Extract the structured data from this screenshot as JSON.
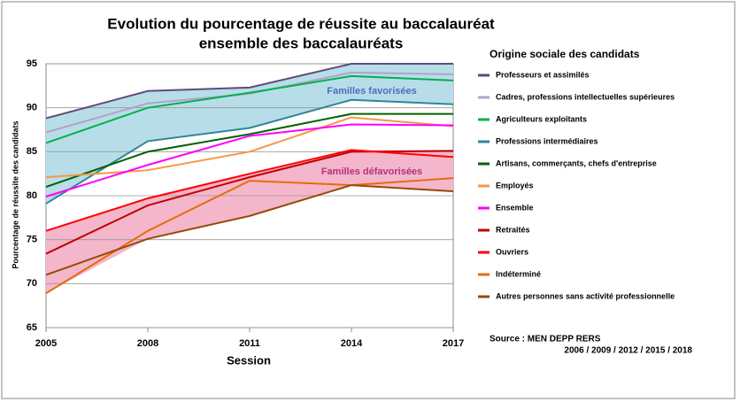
{
  "chart_data": {
    "type": "line",
    "title": "Evolution du pourcentage de réussite au baccalauréat",
    "subtitle": "ensemble des baccalauréats",
    "y_label": "Pourcentage de réussite des candidats",
    "x_label": "Session",
    "legend_title": "Origine sociale des candidats",
    "annotations": [
      {
        "text": "Familles favorisées",
        "color": "#4f6bbf",
        "fill": "#b7dee8"
      },
      {
        "text": "Familles défavorisées",
        "color": "#b2307f",
        "fill": "#f4b6cb"
      }
    ],
    "source": "Source : MEN DEPP RERS",
    "source_years": "2006 / 2009 / 2012 / 2015 / 2018",
    "x": [
      2005,
      2008,
      2011,
      2014,
      2017
    ],
    "xlim": [
      2005,
      2017
    ],
    "xticks": [
      2005,
      2008,
      2011,
      2014,
      2017
    ],
    "ylim": [
      65,
      95
    ],
    "yticks": [
      65,
      70,
      75,
      80,
      85,
      90,
      95
    ],
    "grid": true,
    "series": [
      {
        "name": "Professeurs et assimilés",
        "color": "#604a7b",
        "values": [
          88.8,
          91.9,
          92.3,
          95.0,
          95.0
        ]
      },
      {
        "name": "Cadres, professions intellectuelles supérieures",
        "color": "#b3a2c7",
        "values": [
          87.2,
          90.5,
          91.6,
          94.0,
          93.8
        ]
      },
      {
        "name": "Agriculteurs exploitants",
        "color": "#00b050",
        "values": [
          86.0,
          90.0,
          91.7,
          93.6,
          93.1
        ]
      },
      {
        "name": "Professions intermédiaires",
        "color": "#31849b",
        "values": [
          79.1,
          86.2,
          87.7,
          90.9,
          90.4
        ]
      },
      {
        "name": "Artisans, commerçants, chefs d'entreprise",
        "color": "#006100",
        "values": [
          81.0,
          85.0,
          87.0,
          89.3,
          89.3
        ]
      },
      {
        "name": "Employés",
        "color": "#f79646",
        "values": [
          82.1,
          82.9,
          85.0,
          88.9,
          87.9
        ]
      },
      {
        "name": "Ensemble",
        "color": "#ff00ff",
        "values": [
          79.9,
          83.5,
          86.8,
          88.1,
          88.0
        ]
      },
      {
        "name": "Retraités",
        "color": "#c00000",
        "values": [
          73.4,
          78.9,
          82.1,
          85.0,
          85.1
        ]
      },
      {
        "name": "Ouvriers",
        "color": "#ff0000",
        "values": [
          76.0,
          79.7,
          82.5,
          85.2,
          84.4
        ]
      },
      {
        "name": "Indéterminé",
        "color": "#e46c0a",
        "values": [
          68.9,
          76.0,
          81.7,
          81.2,
          82.0
        ]
      },
      {
        "name": "Autres personnes sans activité professionnelle",
        "color": "#984807",
        "values": [
          71.0,
          75.1,
          77.7,
          81.2,
          80.5
        ]
      }
    ]
  }
}
